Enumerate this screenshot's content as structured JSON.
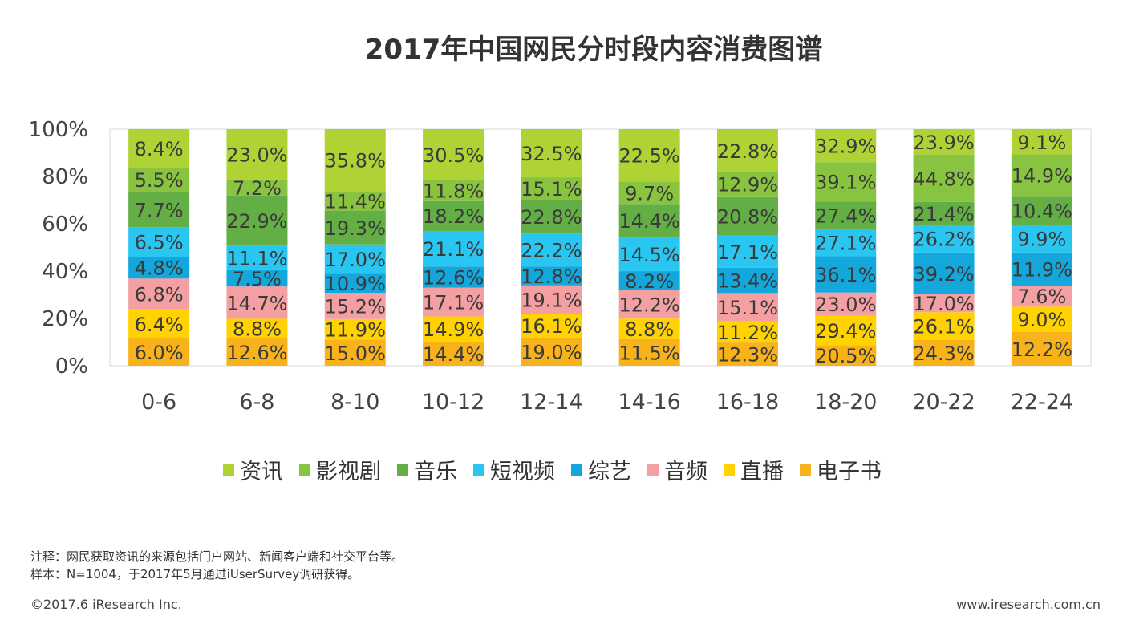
{
  "title": "2017年中国网民分时段内容消费图谱",
  "chart_data": {
    "type": "stacked-bar-100",
    "title": "2017年中国网民分时段内容消费图谱",
    "categories": [
      "0-6",
      "6-8",
      "8-10",
      "10-12",
      "12-14",
      "14-16",
      "16-18",
      "18-20",
      "20-22",
      "22-24"
    ],
    "y_ticks": [
      "0%",
      "20%",
      "40%",
      "60%",
      "80%",
      "100%"
    ],
    "ylim": [
      0,
      100
    ],
    "series": [
      {
        "name": "电子书",
        "color": "#F8B31B",
        "values": [
          6.0,
          12.6,
          15.0,
          14.4,
          19.0,
          11.5,
          12.3,
          20.5,
          24.3,
          12.2
        ]
      },
      {
        "name": "直播",
        "color": "#FFD200",
        "values": [
          6.4,
          8.8,
          11.9,
          14.9,
          16.1,
          8.8,
          11.2,
          29.4,
          26.1,
          9.0
        ]
      },
      {
        "name": "音频",
        "color": "#F4A0A3",
        "values": [
          6.8,
          14.7,
          15.2,
          17.1,
          19.1,
          12.2,
          15.1,
          23.0,
          17.0,
          7.6
        ]
      },
      {
        "name": "综艺",
        "color": "#14A7DC",
        "values": [
          4.8,
          7.5,
          10.9,
          12.6,
          12.8,
          8.2,
          13.4,
          36.1,
          39.2,
          11.9
        ]
      },
      {
        "name": "短视频",
        "color": "#29C6F1",
        "values": [
          6.5,
          11.1,
          17.0,
          21.1,
          22.2,
          14.5,
          17.1,
          27.1,
          26.2,
          9.9
        ]
      },
      {
        "name": "音乐",
        "color": "#63AE45",
        "values": [
          7.7,
          22.9,
          19.3,
          18.2,
          22.8,
          14.4,
          20.8,
          27.4,
          21.4,
          10.4
        ]
      },
      {
        "name": "影视剧",
        "color": "#89C440",
        "values": [
          5.5,
          7.2,
          11.4,
          11.8,
          15.1,
          9.7,
          12.9,
          39.1,
          44.8,
          14.9
        ]
      },
      {
        "name": "资讯",
        "color": "#AFD235",
        "values": [
          8.4,
          23.0,
          35.8,
          30.5,
          32.5,
          22.5,
          22.8,
          32.9,
          23.9,
          9.1
        ]
      }
    ],
    "legend_order": [
      "资讯",
      "影视剧",
      "音乐",
      "短视频",
      "综艺",
      "音频",
      "直播",
      "电子书"
    ],
    "legend_position": "bottom",
    "gridlines": false
  },
  "notes": {
    "line1": "注释：网民获取资讯的来源包括门户网站、新闻客户端和社交平台等。",
    "line2": "样本：N=1004，于2017年5月通过iUserSurvey调研获得。"
  },
  "footer": {
    "copyright": "©2017.6 iResearch Inc.",
    "website": "www.iresearch.com.cn"
  }
}
